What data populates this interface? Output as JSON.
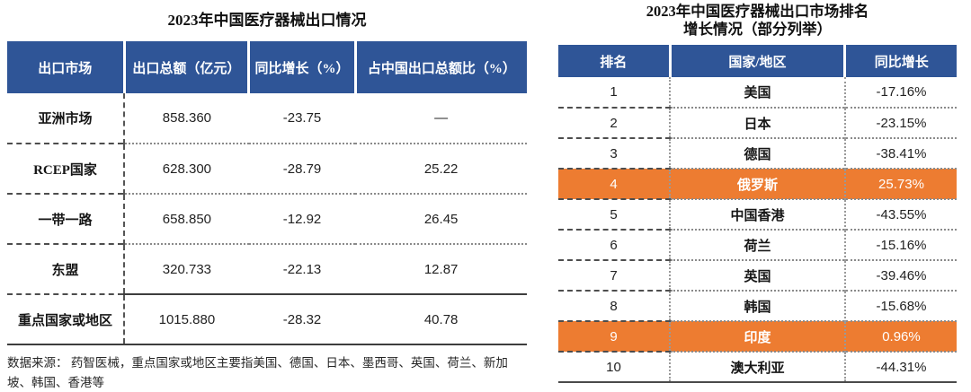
{
  "colors": {
    "header_blue": "#2F5597",
    "highlight_orange": "#ED7C31"
  },
  "left_table": {
    "title": "2023年中国医疗器械出口情况",
    "columns": [
      "出口市场",
      "出口总额（亿元）",
      "同比增长（%）",
      "占中国出口总额比（%）"
    ],
    "rows": [
      {
        "cells": [
          "亚洲市场",
          "858.360",
          "-23.75",
          "—"
        ]
      },
      {
        "cells": [
          "RCEP国家",
          "628.300",
          "-28.79",
          "25.22"
        ]
      },
      {
        "cells": [
          "一带一路",
          "658.850",
          "-12.92",
          "26.45"
        ]
      },
      {
        "cells": [
          "东盟",
          "320.733",
          "-22.13",
          "12.87"
        ]
      },
      {
        "cells": [
          "重点国家或地区",
          "1015.880",
          "-28.32",
          "40.78"
        ],
        "strong_divider": true
      }
    ],
    "source_note": "数据来源： 药智医械，重点国家或地区主要指美国、德国、日本、墨西哥、英国、荷兰、新加坡、韩国、香港等"
  },
  "right_table": {
    "title_lines": [
      "2023年中国医疗器械出口市场排名",
      "增长情况（部分列举）"
    ],
    "columns": [
      "排名",
      "国家/地区",
      "同比增长"
    ],
    "rows": [
      {
        "cells": [
          "1",
          "美国",
          "-17.16%"
        ]
      },
      {
        "cells": [
          "2",
          "日本",
          "-23.15%"
        ]
      },
      {
        "cells": [
          "3",
          "德国",
          "-38.41%"
        ]
      },
      {
        "cells": [
          "4",
          "俄罗斯",
          "25.73%"
        ],
        "highlight": true
      },
      {
        "cells": [
          "5",
          "中国香港",
          "-43.55%"
        ]
      },
      {
        "cells": [
          "6",
          "荷兰",
          "-15.16%"
        ]
      },
      {
        "cells": [
          "7",
          "英国",
          "-39.46%"
        ]
      },
      {
        "cells": [
          "8",
          "韩国",
          "-15.68%"
        ]
      },
      {
        "cells": [
          "9",
          "印度",
          "0.96%"
        ],
        "highlight": true
      },
      {
        "cells": [
          "10",
          "澳大利亚",
          "-44.31%"
        ]
      }
    ]
  }
}
